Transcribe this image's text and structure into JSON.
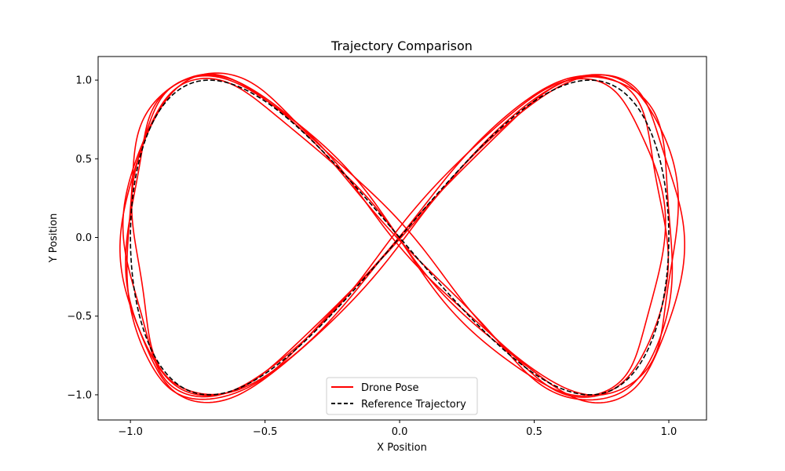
{
  "chart_data": {
    "type": "line",
    "title": "Trajectory Comparison",
    "xlabel": "X Position",
    "ylabel": "Y Position",
    "xlim": [
      -1.12,
      1.14
    ],
    "ylim": [
      -1.16,
      1.15
    ],
    "xticks": [
      -1.0,
      -0.5,
      0.0,
      0.5,
      1.0
    ],
    "xtick_labels": [
      "−1.0",
      "−0.5",
      "0.0",
      "0.5",
      "1.0"
    ],
    "yticks": [
      -1.0,
      -0.5,
      0.0,
      0.5,
      1.0
    ],
    "ytick_labels": [
      "−1.0",
      "−0.5",
      "0.0",
      "0.5",
      "1.0"
    ],
    "grid": false,
    "legend_position": "bottom-center",
    "series": [
      {
        "name": "Drone Pose",
        "color": "#ff0000",
        "style": "solid",
        "form": "lemniscate x=sin(t), y=sin(2t); 5 noisy laps",
        "laps": [
          {
            "x_scale": 1.02,
            "y_scale": 1.03,
            "x_offset": 0.0,
            "y_offset": 0.0
          },
          {
            "x_scale": 1.0,
            "y_scale": 1.02,
            "x_offset": -0.01,
            "y_offset": 0.01
          },
          {
            "x_scale": 1.03,
            "y_scale": 1.04,
            "x_offset": 0.01,
            "y_offset": -0.01
          },
          {
            "x_scale": 0.99,
            "y_scale": 1.01,
            "x_offset": -0.02,
            "y_offset": 0.0
          },
          {
            "x_scale": 1.01,
            "y_scale": 1.02,
            "x_offset": 0.02,
            "y_offset": 0.02
          }
        ]
      },
      {
        "name": "Reference Trajectory",
        "color": "#000000",
        "style": "dashed",
        "form": "lemniscate x=sin(t), y=sin(2t)",
        "x_amplitude": 1.0,
        "y_amplitude": 1.0
      }
    ]
  }
}
